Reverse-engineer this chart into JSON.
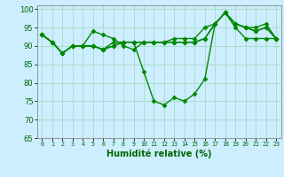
{
  "xlabel": "Humidité relative (%)",
  "bg_color": "#cceeff",
  "grid_color": "#aaddcc",
  "line_color": "#008800",
  "marker": "D",
  "markersize": 2.5,
  "linewidth": 1.0,
  "xlim": [
    -0.5,
    23.5
  ],
  "ylim": [
    65,
    101
  ],
  "yticks": [
    65,
    70,
    75,
    80,
    85,
    90,
    95,
    100
  ],
  "xticks": [
    0,
    1,
    2,
    3,
    4,
    5,
    6,
    7,
    8,
    9,
    10,
    11,
    12,
    13,
    14,
    15,
    16,
    17,
    18,
    19,
    20,
    21,
    22,
    23
  ],
  "series": [
    [
      93,
      91,
      88,
      90,
      90,
      90,
      89,
      90,
      91,
      91,
      91,
      91,
      91,
      91,
      91,
      91,
      92,
      96,
      99,
      96,
      95,
      94,
      95,
      92
    ],
    [
      93,
      91,
      88,
      90,
      90,
      94,
      93,
      92,
      90,
      89,
      91,
      91,
      91,
      92,
      92,
      92,
      95,
      96,
      99,
      96,
      95,
      95,
      96,
      92
    ],
    [
      93,
      91,
      88,
      90,
      90,
      90,
      89,
      91,
      91,
      91,
      91,
      91,
      91,
      91,
      91,
      91,
      92,
      96,
      99,
      96,
      95,
      94,
      95,
      92
    ],
    [
      93,
      91,
      88,
      90,
      90,
      90,
      89,
      90,
      91,
      91,
      83,
      75,
      74,
      76,
      75,
      77,
      81,
      96,
      99,
      95,
      92,
      92,
      92,
      92
    ]
  ]
}
